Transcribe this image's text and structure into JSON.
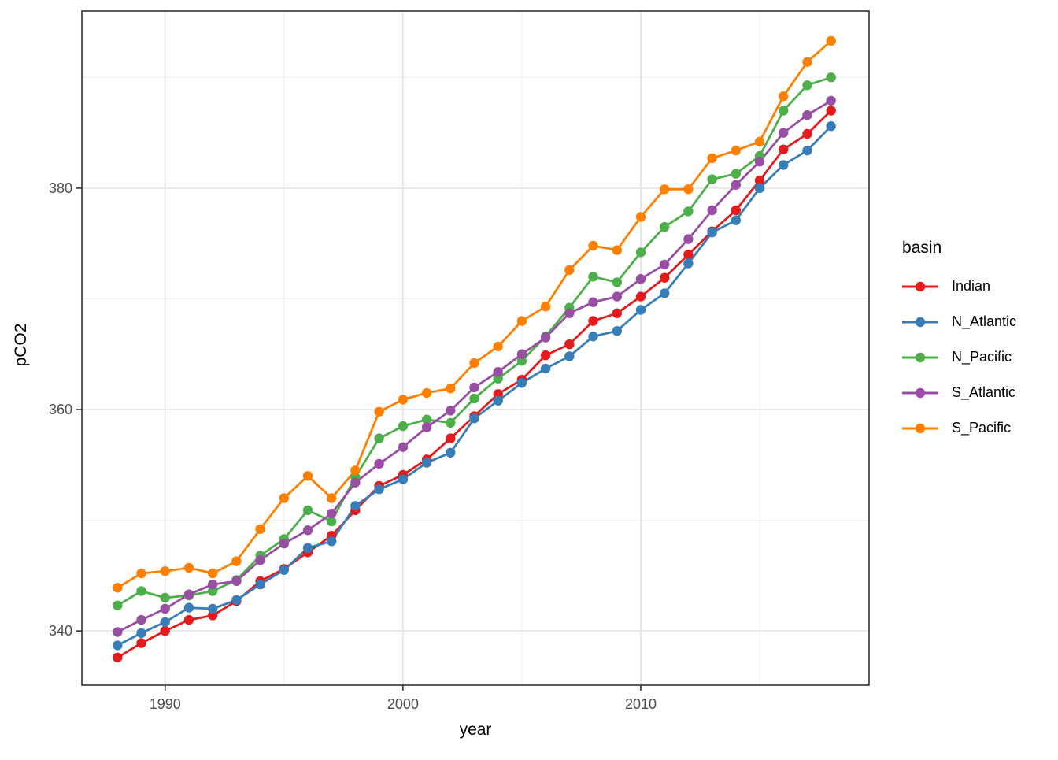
{
  "chart_data": {
    "type": "line",
    "title": "",
    "xlabel": "year",
    "ylabel": "pCO2",
    "x": [
      1988,
      1989,
      1990,
      1991,
      1992,
      1993,
      1994,
      1995,
      1996,
      1997,
      1998,
      1999,
      2000,
      2001,
      2002,
      2003,
      2004,
      2005,
      2006,
      2007,
      2008,
      2009,
      2010,
      2011,
      2012,
      2013,
      2014,
      2015,
      2016,
      2017,
      2018
    ],
    "series": [
      {
        "name": "Indian",
        "color": "#E41A1C",
        "values": [
          337.6,
          338.9,
          340.0,
          341.0,
          341.4,
          342.7,
          344.5,
          345.6,
          347.1,
          348.6,
          350.9,
          353.1,
          354.1,
          355.5,
          357.4,
          359.4,
          361.4,
          362.7,
          364.9,
          365.9,
          368.0,
          368.7,
          370.2,
          371.9,
          374.0,
          376.1,
          378.0,
          380.7,
          383.5,
          384.9,
          387.0
        ]
      },
      {
        "name": "N_Atlantic",
        "color": "#377EB8",
        "values": [
          338.7,
          339.8,
          340.8,
          342.1,
          342.0,
          342.8,
          344.2,
          345.5,
          347.5,
          348.1,
          351.3,
          352.8,
          353.7,
          355.2,
          356.1,
          359.2,
          360.8,
          362.4,
          363.7,
          364.8,
          366.6,
          367.1,
          369.0,
          370.5,
          373.2,
          376.0,
          377.1,
          380.0,
          382.1,
          383.4,
          385.6
        ]
      },
      {
        "name": "N_Pacific",
        "color": "#4DAF4A",
        "values": [
          342.3,
          343.6,
          343.0,
          343.2,
          343.6,
          344.6,
          346.8,
          348.3,
          350.9,
          349.9,
          353.9,
          357.4,
          358.5,
          359.1,
          358.8,
          361.0,
          362.8,
          364.4,
          366.6,
          369.2,
          372.0,
          371.5,
          374.2,
          376.5,
          377.9,
          380.8,
          381.3,
          382.9,
          387.0,
          389.3,
          390.0
        ]
      },
      {
        "name": "S_Atlantic",
        "color": "#984EA3",
        "values": [
          339.9,
          341.0,
          342.0,
          343.3,
          344.2,
          344.5,
          346.4,
          347.9,
          349.1,
          350.6,
          353.4,
          355.1,
          356.6,
          358.4,
          359.9,
          362.0,
          363.4,
          365.0,
          366.5,
          368.7,
          369.7,
          370.2,
          371.8,
          373.1,
          375.4,
          378.0,
          380.3,
          382.4,
          385.0,
          386.6,
          387.9
        ]
      },
      {
        "name": "S_Pacific",
        "color": "#FF7F00",
        "values": [
          343.9,
          345.2,
          345.4,
          345.7,
          345.2,
          346.3,
          349.2,
          352.0,
          354.0,
          352.0,
          354.5,
          359.8,
          360.9,
          361.5,
          361.9,
          364.2,
          365.7,
          368.0,
          369.3,
          372.6,
          374.8,
          374.4,
          377.4,
          379.9,
          379.9,
          382.7,
          383.4,
          384.2,
          388.3,
          391.4,
          393.3
        ]
      }
    ],
    "xlim": [
      1986.5,
      2019.6
    ],
    "ylim": [
      335.1,
      396.0
    ],
    "xticks": {
      "major": [
        1990,
        2000,
        2010
      ],
      "minor": [
        1995,
        2005,
        2015
      ],
      "labels": [
        "1990",
        "2000",
        "2010"
      ]
    },
    "yticks": {
      "major": [
        340,
        360,
        380
      ],
      "minor": [
        350,
        370,
        390
      ],
      "labels": [
        "340",
        "360",
        "380"
      ]
    },
    "grid": true,
    "legend": {
      "title": "basin",
      "position": "right"
    }
  },
  "styles": {
    "panel_border": "#333333",
    "grid_major": "#e6e6e6",
    "grid_minor": "#f0f0f0",
    "tick": "#333333",
    "tick_label": "#4d4d4d",
    "axis_title": "#000000",
    "background": "#ffffff"
  }
}
